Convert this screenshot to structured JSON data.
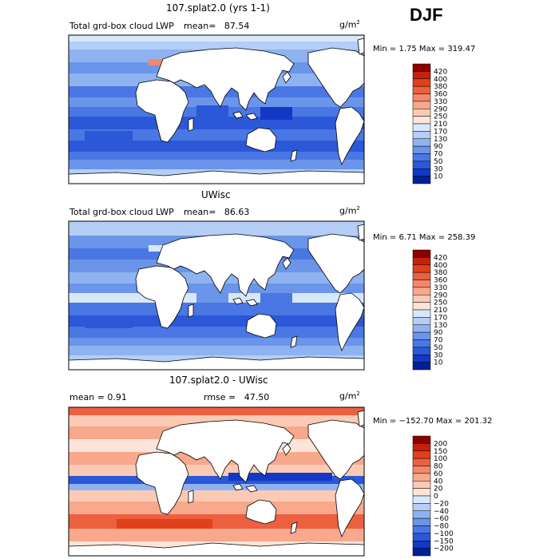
{
  "season": "DJF",
  "units": "g/m",
  "units_exp": "2",
  "panels": [
    {
      "title": "107.splat2.0 (yrs 1-1)",
      "left_label": "Total grd-box cloud LWP",
      "mean_label": "mean=",
      "mean_value": "87.54",
      "stats": "Min =    1.75 Max = 319.47",
      "colorbar_labels": [
        "420",
        "400",
        "380",
        "360",
        "330",
        "290",
        "250",
        "210",
        "170",
        "130",
        "90",
        "70",
        "50",
        "30",
        "10"
      ]
    },
    {
      "title": "UWisc",
      "left_label": "Total grd-box cloud LWP",
      "mean_label": "mean=",
      "mean_value": "86.63",
      "stats": "Min =    6.71 Max = 258.39",
      "colorbar_labels": [
        "420",
        "400",
        "380",
        "360",
        "330",
        "290",
        "250",
        "210",
        "170",
        "130",
        "90",
        "70",
        "50",
        "30",
        "10"
      ]
    },
    {
      "title": "107.splat2.0 - UWisc",
      "left_label": "mean =    0.91",
      "mean_label": "rmse =",
      "mean_value": "47.50",
      "stats": "Min = −152.70 Max = 201.32",
      "colorbar_labels": [
        "200",
        "150",
        "100",
        "80",
        "60",
        "40",
        "20",
        "0",
        "−20",
        "−40",
        "−60",
        "−80",
        "−100",
        "−150",
        "−200"
      ]
    }
  ],
  "colors": {
    "abs_scale": [
      "#8b0000",
      "#c8200d",
      "#e0401a",
      "#ec6040",
      "#f4886a",
      "#f8a88c",
      "#fbcab5",
      "#fde4d8",
      "#d8e8fb",
      "#b4cef5",
      "#8fb3f0",
      "#6b95ea",
      "#4a77e3",
      "#2b58d8",
      "#1238c6",
      "#00209a"
    ],
    "diff_scale": [
      "#8b0000",
      "#c8200d",
      "#e0401a",
      "#ec6040",
      "#f4886a",
      "#f8a88c",
      "#fbcab5",
      "#fde4d8",
      "#d8e8fb",
      "#b4cef5",
      "#8fb3f0",
      "#6b95ea",
      "#4a77e3",
      "#2b58d8",
      "#1238c6",
      "#00209a"
    ]
  }
}
